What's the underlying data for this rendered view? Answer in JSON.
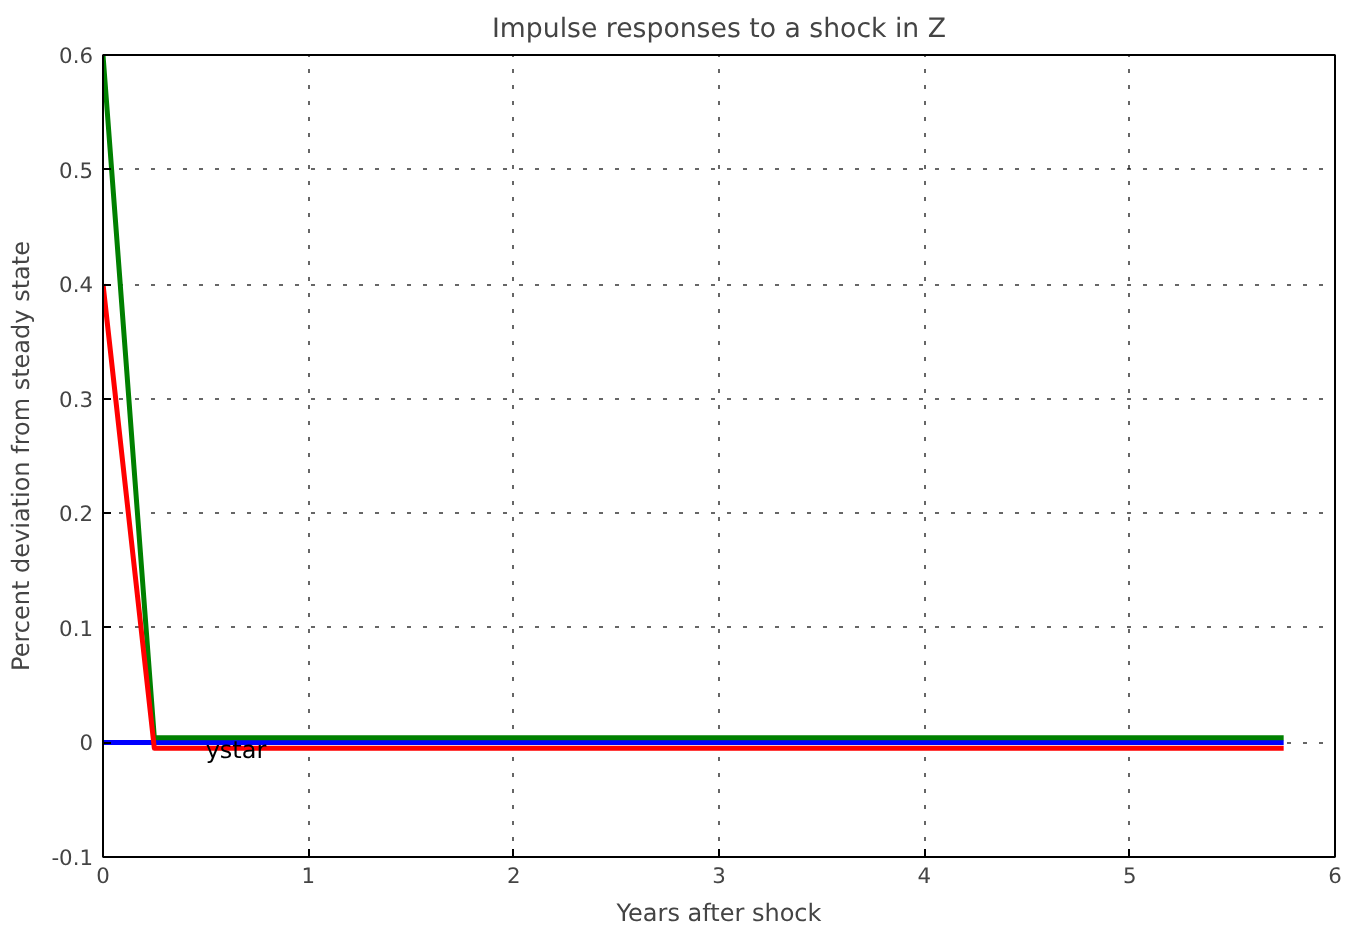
{
  "chart_data": {
    "type": "line",
    "title": "Impulse responses to a shock in Z",
    "xlabel": "Years after shock",
    "ylabel": "Percent deviation from steady state",
    "series": [
      {
        "color": "#0000ff",
        "x": [
          0,
          0.25,
          5.75
        ],
        "values": [
          0,
          0,
          0
        ]
      },
      {
        "color": "#008000",
        "x": [
          0,
          0.25,
          5.75
        ],
        "values": [
          0.6,
          0.004,
          0.004
        ]
      },
      {
        "color": "#ff0000",
        "x": [
          0,
          0.25,
          5.75
        ],
        "values": [
          0.4,
          -0.005,
          -0.005
        ]
      }
    ],
    "annotations": [
      {
        "text": "ystar",
        "x": 0.5,
        "y": 0
      }
    ],
    "xlim": [
      0,
      6
    ],
    "xticks": [
      0,
      1,
      2,
      3,
      4,
      5,
      6
    ],
    "ylim": [
      -0.1,
      0.6
    ],
    "yticks": [
      -0.1,
      0,
      0.1,
      0.2,
      0.3,
      0.4,
      0.5,
      0.6
    ],
    "grid": true,
    "line_style": "solid",
    "marker": "none"
  }
}
